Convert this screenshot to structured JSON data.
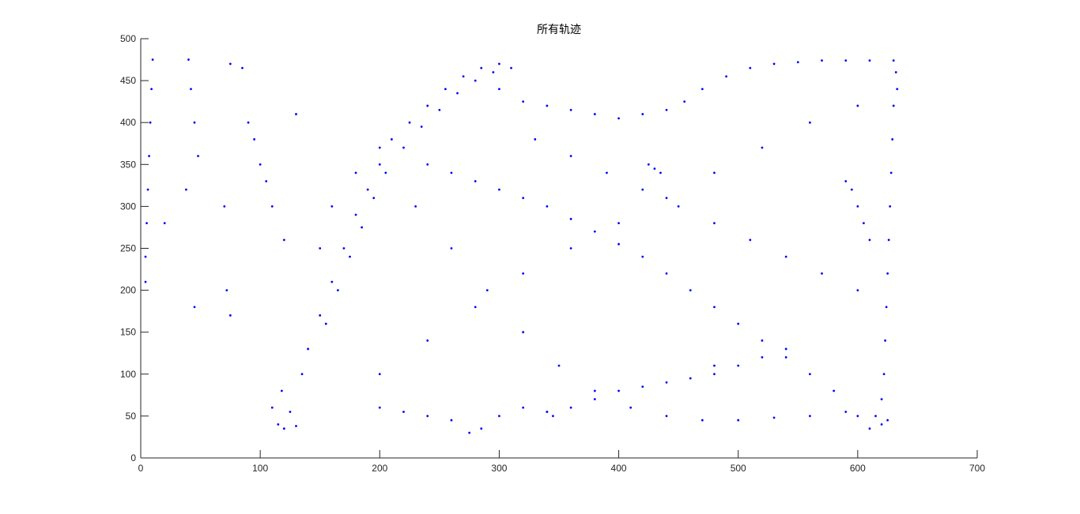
{
  "chart_data": {
    "type": "scatter",
    "title": "所有轨迹",
    "xlabel": "",
    "ylabel": "",
    "xlim": [
      0,
      700
    ],
    "ylim": [
      0,
      500
    ],
    "xticks": [
      "0",
      "100",
      "200",
      "300",
      "400",
      "500",
      "600",
      "700"
    ],
    "yticks": [
      "0",
      "50",
      "100",
      "150",
      "200",
      "250",
      "300",
      "350",
      "400",
      "450",
      "500"
    ],
    "grid": false,
    "legend": "none",
    "marker_color": "#0000ff",
    "axis_color": "#262626",
    "series": [
      {
        "points": [
          [
            10,
            475
          ],
          [
            9,
            440
          ],
          [
            8,
            400
          ],
          [
            7,
            360
          ],
          [
            6,
            320
          ],
          [
            5,
            280
          ],
          [
            4,
            240
          ],
          [
            4,
            210
          ],
          [
            40,
            475
          ],
          [
            42,
            440
          ],
          [
            45,
            400
          ],
          [
            48,
            360
          ],
          [
            38,
            320
          ],
          [
            20,
            280
          ],
          [
            45,
            180
          ],
          [
            75,
            470
          ],
          [
            85,
            465
          ],
          [
            130,
            410
          ],
          [
            70,
            300
          ],
          [
            72,
            200
          ],
          [
            75,
            170
          ],
          [
            110,
            60
          ],
          [
            115,
            40
          ],
          [
            120,
            35
          ],
          [
            125,
            55
          ],
          [
            130,
            38
          ],
          [
            118,
            80
          ],
          [
            135,
            100
          ],
          [
            140,
            130
          ],
          [
            150,
            170
          ],
          [
            160,
            210
          ],
          [
            170,
            250
          ],
          [
            180,
            290
          ],
          [
            190,
            320
          ],
          [
            200,
            350
          ],
          [
            210,
            380
          ],
          [
            225,
            400
          ],
          [
            240,
            420
          ],
          [
            255,
            440
          ],
          [
            270,
            455
          ],
          [
            285,
            465
          ],
          [
            300,
            470
          ],
          [
            155,
            160
          ],
          [
            165,
            200
          ],
          [
            175,
            240
          ],
          [
            185,
            275
          ],
          [
            195,
            310
          ],
          [
            205,
            340
          ],
          [
            220,
            370
          ],
          [
            235,
            395
          ],
          [
            250,
            415
          ],
          [
            265,
            435
          ],
          [
            280,
            450
          ],
          [
            295,
            460
          ],
          [
            310,
            465
          ],
          [
            300,
            440
          ],
          [
            320,
            425
          ],
          [
            340,
            420
          ],
          [
            360,
            415
          ],
          [
            380,
            410
          ],
          [
            400,
            405
          ],
          [
            420,
            410
          ],
          [
            440,
            415
          ],
          [
            455,
            425
          ],
          [
            470,
            440
          ],
          [
            490,
            455
          ],
          [
            510,
            465
          ],
          [
            530,
            470
          ],
          [
            550,
            472
          ],
          [
            570,
            474
          ],
          [
            590,
            474
          ],
          [
            610,
            474
          ],
          [
            630,
            474
          ],
          [
            632,
            460
          ],
          [
            633,
            440
          ],
          [
            630,
            420
          ],
          [
            629,
            380
          ],
          [
            628,
            340
          ],
          [
            627,
            300
          ],
          [
            626,
            260
          ],
          [
            625,
            220
          ],
          [
            624,
            180
          ],
          [
            623,
            140
          ],
          [
            622,
            100
          ],
          [
            620,
            70
          ],
          [
            615,
            50
          ],
          [
            610,
            35
          ],
          [
            620,
            40
          ],
          [
            625,
            45
          ],
          [
            600,
            50
          ],
          [
            580,
            80
          ],
          [
            560,
            100
          ],
          [
            540,
            120
          ],
          [
            520,
            140
          ],
          [
            500,
            160
          ],
          [
            480,
            180
          ],
          [
            460,
            200
          ],
          [
            440,
            220
          ],
          [
            420,
            240
          ],
          [
            400,
            255
          ],
          [
            380,
            270
          ],
          [
            360,
            285
          ],
          [
            340,
            300
          ],
          [
            320,
            310
          ],
          [
            300,
            320
          ],
          [
            280,
            330
          ],
          [
            260,
            340
          ],
          [
            240,
            350
          ],
          [
            200,
            100
          ],
          [
            240,
            140
          ],
          [
            280,
            180
          ],
          [
            320,
            220
          ],
          [
            360,
            250
          ],
          [
            400,
            280
          ],
          [
            440,
            310
          ],
          [
            480,
            340
          ],
          [
            520,
            370
          ],
          [
            560,
            400
          ],
          [
            600,
            420
          ],
          [
            200,
            60
          ],
          [
            220,
            55
          ],
          [
            240,
            50
          ],
          [
            260,
            45
          ],
          [
            275,
            30
          ],
          [
            285,
            35
          ],
          [
            300,
            50
          ],
          [
            320,
            60
          ],
          [
            340,
            55
          ],
          [
            360,
            60
          ],
          [
            380,
            70
          ],
          [
            400,
            80
          ],
          [
            420,
            85
          ],
          [
            440,
            90
          ],
          [
            460,
            95
          ],
          [
            480,
            100
          ],
          [
            500,
            110
          ],
          [
            520,
            120
          ],
          [
            540,
            130
          ],
          [
            150,
            250
          ],
          [
            160,
            300
          ],
          [
            180,
            340
          ],
          [
            200,
            370
          ],
          [
            230,
            300
          ],
          [
            260,
            250
          ],
          [
            290,
            200
          ],
          [
            320,
            150
          ],
          [
            350,
            110
          ],
          [
            380,
            80
          ],
          [
            410,
            60
          ],
          [
            440,
            50
          ],
          [
            470,
            45
          ],
          [
            500,
            45
          ],
          [
            530,
            48
          ],
          [
            560,
            50
          ],
          [
            590,
            55
          ],
          [
            100,
            350
          ],
          [
            110,
            300
          ],
          [
            120,
            260
          ],
          [
            90,
            400
          ],
          [
            95,
            380
          ],
          [
            105,
            330
          ],
          [
            330,
            380
          ],
          [
            360,
            360
          ],
          [
            390,
            340
          ],
          [
            420,
            320
          ],
          [
            450,
            300
          ],
          [
            480,
            280
          ],
          [
            510,
            260
          ],
          [
            540,
            240
          ],
          [
            570,
            220
          ],
          [
            600,
            200
          ],
          [
            430,
            345
          ],
          [
            425,
            350
          ],
          [
            435,
            340
          ],
          [
            480,
            110
          ],
          [
            340,
            55
          ],
          [
            345,
            50
          ],
          [
            590,
            330
          ],
          [
            595,
            320
          ],
          [
            600,
            300
          ],
          [
            605,
            280
          ],
          [
            610,
            260
          ]
        ]
      }
    ]
  }
}
